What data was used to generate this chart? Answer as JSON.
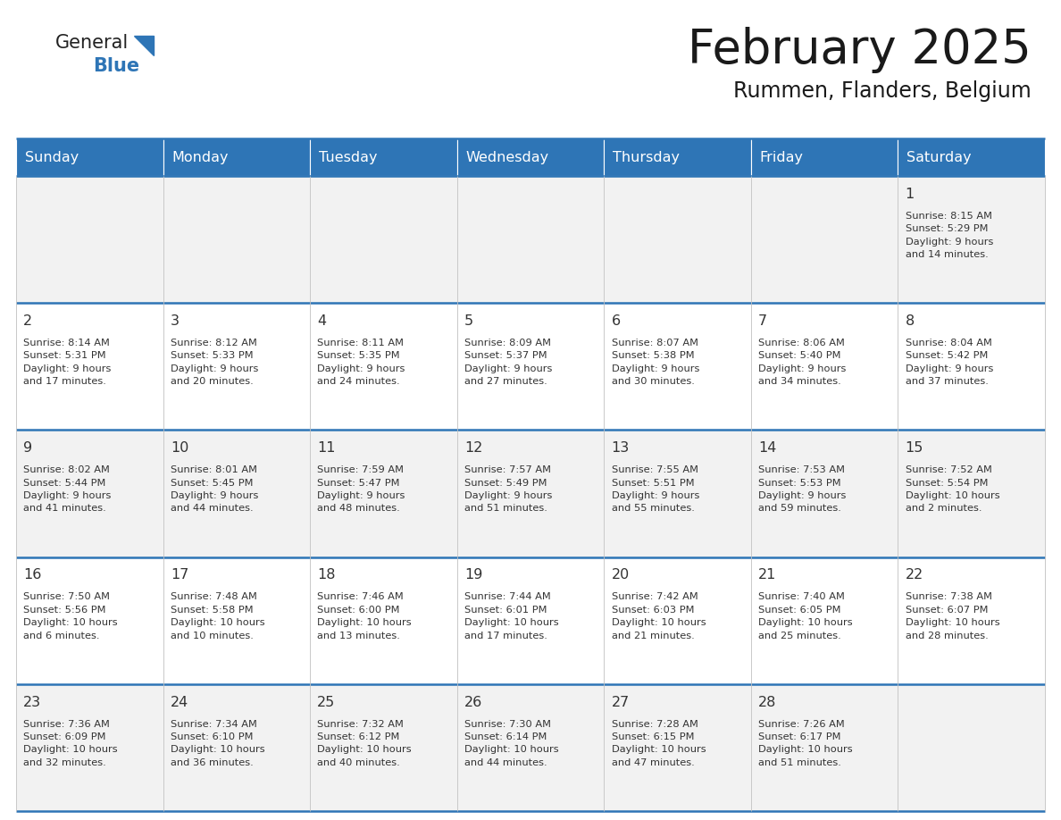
{
  "title": "February 2025",
  "subtitle": "Rummen, Flanders, Belgium",
  "header_color": "#2e75b6",
  "header_text_color": "#ffffff",
  "cell_bg_even": "#f2f2f2",
  "cell_bg_odd": "#ffffff",
  "border_color": "#2e75b6",
  "vert_line_color": "#c0c0c0",
  "text_color": "#333333",
  "logo_general_color": "#222222",
  "logo_blue_color": "#2e75b6",
  "day_names": [
    "Sunday",
    "Monday",
    "Tuesday",
    "Wednesday",
    "Thursday",
    "Friday",
    "Saturday"
  ],
  "weeks": [
    [
      {
        "day": null,
        "info": null
      },
      {
        "day": null,
        "info": null
      },
      {
        "day": null,
        "info": null
      },
      {
        "day": null,
        "info": null
      },
      {
        "day": null,
        "info": null
      },
      {
        "day": null,
        "info": null
      },
      {
        "day": 1,
        "info": "Sunrise: 8:15 AM\nSunset: 5:29 PM\nDaylight: 9 hours\nand 14 minutes."
      }
    ],
    [
      {
        "day": 2,
        "info": "Sunrise: 8:14 AM\nSunset: 5:31 PM\nDaylight: 9 hours\nand 17 minutes."
      },
      {
        "day": 3,
        "info": "Sunrise: 8:12 AM\nSunset: 5:33 PM\nDaylight: 9 hours\nand 20 minutes."
      },
      {
        "day": 4,
        "info": "Sunrise: 8:11 AM\nSunset: 5:35 PM\nDaylight: 9 hours\nand 24 minutes."
      },
      {
        "day": 5,
        "info": "Sunrise: 8:09 AM\nSunset: 5:37 PM\nDaylight: 9 hours\nand 27 minutes."
      },
      {
        "day": 6,
        "info": "Sunrise: 8:07 AM\nSunset: 5:38 PM\nDaylight: 9 hours\nand 30 minutes."
      },
      {
        "day": 7,
        "info": "Sunrise: 8:06 AM\nSunset: 5:40 PM\nDaylight: 9 hours\nand 34 minutes."
      },
      {
        "day": 8,
        "info": "Sunrise: 8:04 AM\nSunset: 5:42 PM\nDaylight: 9 hours\nand 37 minutes."
      }
    ],
    [
      {
        "day": 9,
        "info": "Sunrise: 8:02 AM\nSunset: 5:44 PM\nDaylight: 9 hours\nand 41 minutes."
      },
      {
        "day": 10,
        "info": "Sunrise: 8:01 AM\nSunset: 5:45 PM\nDaylight: 9 hours\nand 44 minutes."
      },
      {
        "day": 11,
        "info": "Sunrise: 7:59 AM\nSunset: 5:47 PM\nDaylight: 9 hours\nand 48 minutes."
      },
      {
        "day": 12,
        "info": "Sunrise: 7:57 AM\nSunset: 5:49 PM\nDaylight: 9 hours\nand 51 minutes."
      },
      {
        "day": 13,
        "info": "Sunrise: 7:55 AM\nSunset: 5:51 PM\nDaylight: 9 hours\nand 55 minutes."
      },
      {
        "day": 14,
        "info": "Sunrise: 7:53 AM\nSunset: 5:53 PM\nDaylight: 9 hours\nand 59 minutes."
      },
      {
        "day": 15,
        "info": "Sunrise: 7:52 AM\nSunset: 5:54 PM\nDaylight: 10 hours\nand 2 minutes."
      }
    ],
    [
      {
        "day": 16,
        "info": "Sunrise: 7:50 AM\nSunset: 5:56 PM\nDaylight: 10 hours\nand 6 minutes."
      },
      {
        "day": 17,
        "info": "Sunrise: 7:48 AM\nSunset: 5:58 PM\nDaylight: 10 hours\nand 10 minutes."
      },
      {
        "day": 18,
        "info": "Sunrise: 7:46 AM\nSunset: 6:00 PM\nDaylight: 10 hours\nand 13 minutes."
      },
      {
        "day": 19,
        "info": "Sunrise: 7:44 AM\nSunset: 6:01 PM\nDaylight: 10 hours\nand 17 minutes."
      },
      {
        "day": 20,
        "info": "Sunrise: 7:42 AM\nSunset: 6:03 PM\nDaylight: 10 hours\nand 21 minutes."
      },
      {
        "day": 21,
        "info": "Sunrise: 7:40 AM\nSunset: 6:05 PM\nDaylight: 10 hours\nand 25 minutes."
      },
      {
        "day": 22,
        "info": "Sunrise: 7:38 AM\nSunset: 6:07 PM\nDaylight: 10 hours\nand 28 minutes."
      }
    ],
    [
      {
        "day": 23,
        "info": "Sunrise: 7:36 AM\nSunset: 6:09 PM\nDaylight: 10 hours\nand 32 minutes."
      },
      {
        "day": 24,
        "info": "Sunrise: 7:34 AM\nSunset: 6:10 PM\nDaylight: 10 hours\nand 36 minutes."
      },
      {
        "day": 25,
        "info": "Sunrise: 7:32 AM\nSunset: 6:12 PM\nDaylight: 10 hours\nand 40 minutes."
      },
      {
        "day": 26,
        "info": "Sunrise: 7:30 AM\nSunset: 6:14 PM\nDaylight: 10 hours\nand 44 minutes."
      },
      {
        "day": 27,
        "info": "Sunrise: 7:28 AM\nSunset: 6:15 PM\nDaylight: 10 hours\nand 47 minutes."
      },
      {
        "day": 28,
        "info": "Sunrise: 7:26 AM\nSunset: 6:17 PM\nDaylight: 10 hours\nand 51 minutes."
      },
      {
        "day": null,
        "info": null
      }
    ]
  ]
}
